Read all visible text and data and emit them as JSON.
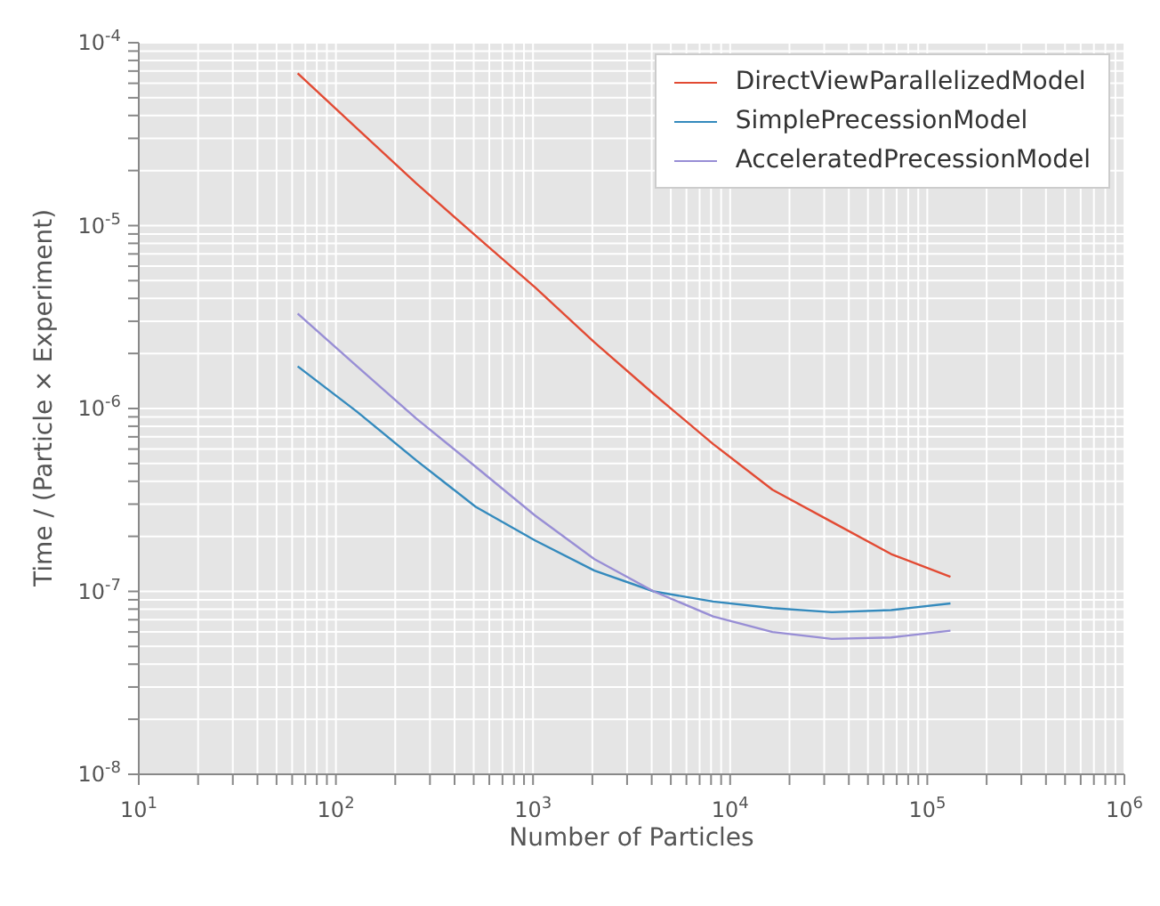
{
  "chart_data": {
    "type": "line",
    "xlabel": "Number of Particles",
    "ylabel": "Time / (Particle × Experiment)",
    "log": "xy",
    "grid": true,
    "legend": "top right",
    "x": [
      64,
      128,
      256,
      512,
      1024,
      2048,
      4096,
      8192,
      16384,
      32768,
      65536,
      131072
    ],
    "series": [
      {
        "name": "DirectViewParallelizedModel",
        "color": "#e24a33",
        "values": [
          6.8e-05,
          3.4e-05,
          1.7e-05,
          8.8e-06,
          4.6e-06,
          2.3e-06,
          1.2e-06,
          6.4e-07,
          3.6e-07,
          2.4e-07,
          1.6e-07,
          1.2e-07
        ]
      },
      {
        "name": "SimplePrecessionModel",
        "color": "#348abd",
        "values": [
          1.7e-06,
          9.6e-07,
          5.2e-07,
          2.9e-07,
          1.9e-07,
          1.3e-07,
          1e-07,
          8.8e-08,
          8.1e-08,
          7.7e-08,
          7.9e-08,
          8.6e-08
        ]
      },
      {
        "name": "AcceleratedPrecessionModel",
        "color": "#988ed5",
        "values": [
          3.3e-06,
          1.7e-06,
          8.8e-07,
          4.8e-07,
          2.6e-07,
          1.5e-07,
          1e-07,
          7.3e-08,
          6e-08,
          5.5e-08,
          5.6e-08,
          6.1e-08
        ]
      }
    ],
    "xlim": [
      10,
      1000000
    ],
    "xticks": [
      {
        "value": 10,
        "label": "10$^{1}$"
      },
      {
        "value": 20,
        "label": null
      },
      {
        "value": 30,
        "label": null
      },
      {
        "value": 40,
        "label": null
      },
      {
        "value": 50,
        "label": null
      },
      {
        "value": 60,
        "label": null
      },
      {
        "value": 70,
        "label": null
      },
      {
        "value": 80,
        "label": null
      },
      {
        "value": 90,
        "label": null
      },
      {
        "value": 100,
        "label": "10$^{2}$"
      },
      {
        "value": 200,
        "label": null
      },
      {
        "value": 300,
        "label": null
      },
      {
        "value": 400,
        "label": null
      },
      {
        "value": 500,
        "label": null
      },
      {
        "value": 600,
        "label": null
      },
      {
        "value": 700,
        "label": null
      },
      {
        "value": 800,
        "label": null
      },
      {
        "value": 900,
        "label": null
      },
      {
        "value": 1000,
        "label": "10$^{3}$"
      },
      {
        "value": 2000,
        "label": null
      },
      {
        "value": 3000,
        "label": null
      },
      {
        "value": 4000,
        "label": null
      },
      {
        "value": 5000,
        "label": null
      },
      {
        "value": 6000,
        "label": null
      },
      {
        "value": 7000,
        "label": null
      },
      {
        "value": 8000,
        "label": null
      },
      {
        "value": 9000,
        "label": null
      },
      {
        "value": 10000,
        "label": "10$^{4}$"
      },
      {
        "value": 20000,
        "label": null
      },
      {
        "value": 30000,
        "label": null
      },
      {
        "value": 40000,
        "label": null
      },
      {
        "value": 50000,
        "label": null
      },
      {
        "value": 60000,
        "label": null
      },
      {
        "value": 70000,
        "label": null
      },
      {
        "value": 80000,
        "label": null
      },
      {
        "value": 90000,
        "label": null
      },
      {
        "value": 100000,
        "label": "10$^{5}$"
      },
      {
        "value": 200000,
        "label": null
      },
      {
        "value": 300000,
        "label": null
      },
      {
        "value": 400000,
        "label": null
      },
      {
        "value": 500000,
        "label": null
      },
      {
        "value": 600000,
        "label": null
      },
      {
        "value": 700000,
        "label": null
      },
      {
        "value": 800000,
        "label": null
      },
      {
        "value": 900000,
        "label": null
      },
      {
        "value": 1000000,
        "label": "10$^{6}$"
      }
    ],
    "ylim": [
      1e-08,
      0.0001
    ],
    "yticks": [
      {
        "value": 1e-08,
        "label": "10$^{-8}$"
      },
      {
        "value": 2e-08,
        "label": null
      },
      {
        "value": 3e-08,
        "label": null
      },
      {
        "value": 4e-08,
        "label": null
      },
      {
        "value": 5e-08,
        "label": null
      },
      {
        "value": 6e-08,
        "label": null
      },
      {
        "value": 7e-08,
        "label": null
      },
      {
        "value": 8e-08,
        "label": null
      },
      {
        "value": 9e-08,
        "label": null
      },
      {
        "value": 1e-07,
        "label": "10$^{-7}$"
      },
      {
        "value": 2e-07,
        "label": null
      },
      {
        "value": 3e-07,
        "label": null
      },
      {
        "value": 4e-07,
        "label": null
      },
      {
        "value": 5e-07,
        "label": null
      },
      {
        "value": 6e-07,
        "label": null
      },
      {
        "value": 7e-07,
        "label": null
      },
      {
        "value": 8e-07,
        "label": null
      },
      {
        "value": 9e-07,
        "label": null
      },
      {
        "value": 1e-06,
        "label": "10$^{-6}$"
      },
      {
        "value": 2e-06,
        "label": null
      },
      {
        "value": 3e-06,
        "label": null
      },
      {
        "value": 4e-06,
        "label": null
      },
      {
        "value": 5e-06,
        "label": null
      },
      {
        "value": 6e-06,
        "label": null
      },
      {
        "value": 7e-06,
        "label": null
      },
      {
        "value": 8e-06,
        "label": null
      },
      {
        "value": 9e-06,
        "label": null
      },
      {
        "value": 1e-05,
        "label": "10$^{-5}$"
      },
      {
        "value": 2e-05,
        "label": null
      },
      {
        "value": 3e-05,
        "label": null
      },
      {
        "value": 4e-05,
        "label": null
      },
      {
        "value": 5e-05,
        "label": null
      },
      {
        "value": 6e-05,
        "label": null
      },
      {
        "value": 7e-05,
        "label": null
      },
      {
        "value": 8e-05,
        "label": null
      },
      {
        "value": 9e-05,
        "label": null
      },
      {
        "value": 0.0001,
        "label": "10$^{-4}$"
      }
    ]
  }
}
